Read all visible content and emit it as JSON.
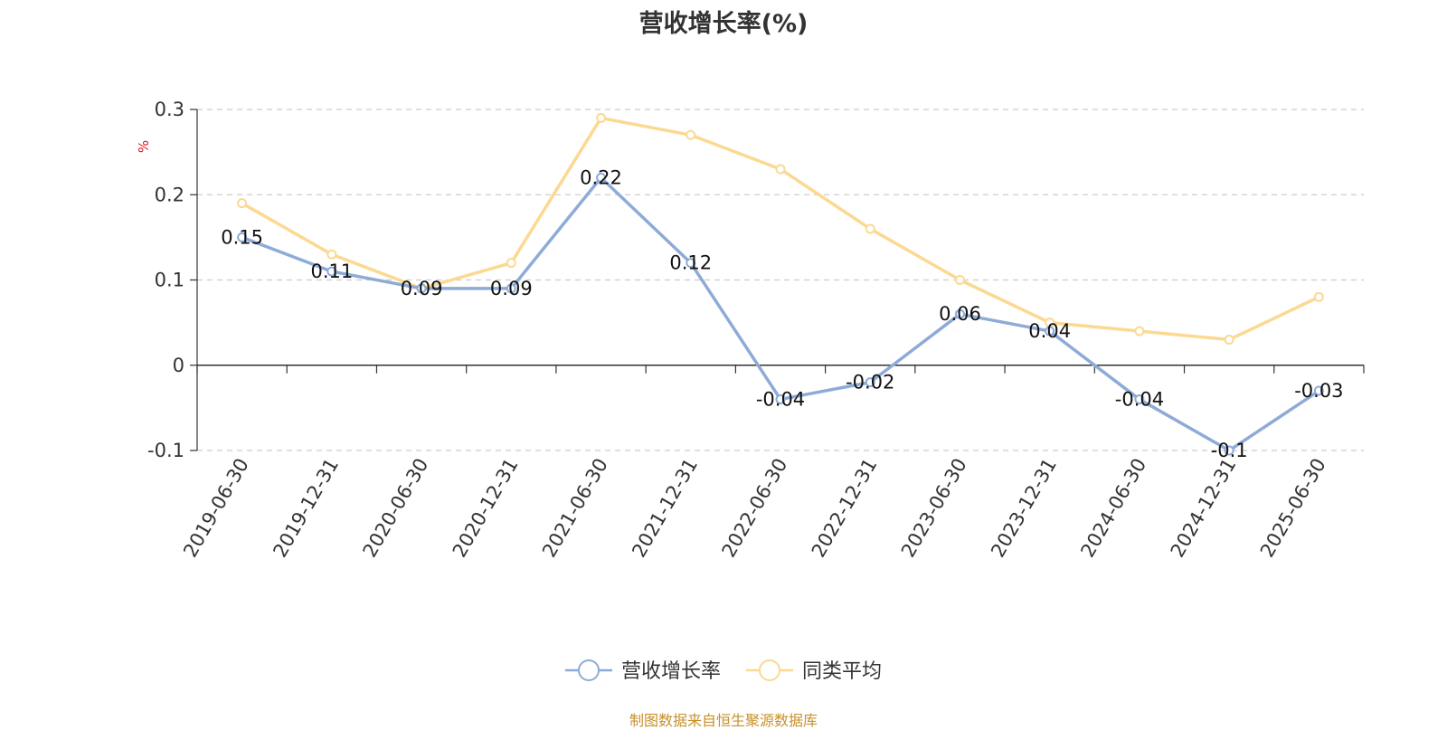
{
  "chart_data": {
    "type": "line",
    "title": "营收增长率(%)",
    "ylabel": "%",
    "ylim": [
      -0.1,
      0.3
    ],
    "yticks": [
      -0.1,
      0,
      0.1,
      0.2,
      0.3
    ],
    "ytick_labels": [
      "-0.1",
      "0",
      "0.1",
      "0.2",
      "0.3"
    ],
    "grid": true,
    "legend_position": "bottom",
    "categories": [
      "2019-06-30",
      "2019-12-31",
      "2020-06-30",
      "2020-12-31",
      "2021-06-30",
      "2021-12-31",
      "2022-06-30",
      "2022-12-31",
      "2023-06-30",
      "2023-12-31",
      "2024-06-30",
      "2024-12-31",
      "2025-06-30"
    ],
    "series": [
      {
        "name": "营收增长率",
        "color": "#8eabd8",
        "values": [
          0.15,
          0.11,
          0.09,
          0.09,
          0.22,
          0.12,
          -0.04,
          -0.02,
          0.06,
          0.04,
          -0.04,
          -0.1,
          -0.03
        ],
        "labels": [
          "0.15",
          "0.11",
          "0.09",
          "0.09",
          "0.22",
          "0.12",
          "-0.04",
          "-0.02",
          "0.06",
          "0.04",
          "-0.04",
          "-0.1",
          "-0.03"
        ]
      },
      {
        "name": "同类平均",
        "color": "#fbd991",
        "values": [
          0.19,
          0.13,
          0.09,
          0.12,
          0.29,
          0.27,
          0.23,
          0.16,
          0.1,
          0.05,
          0.04,
          0.03,
          0.08
        ]
      }
    ]
  },
  "source": "制图数据来自恒生聚源数据库"
}
